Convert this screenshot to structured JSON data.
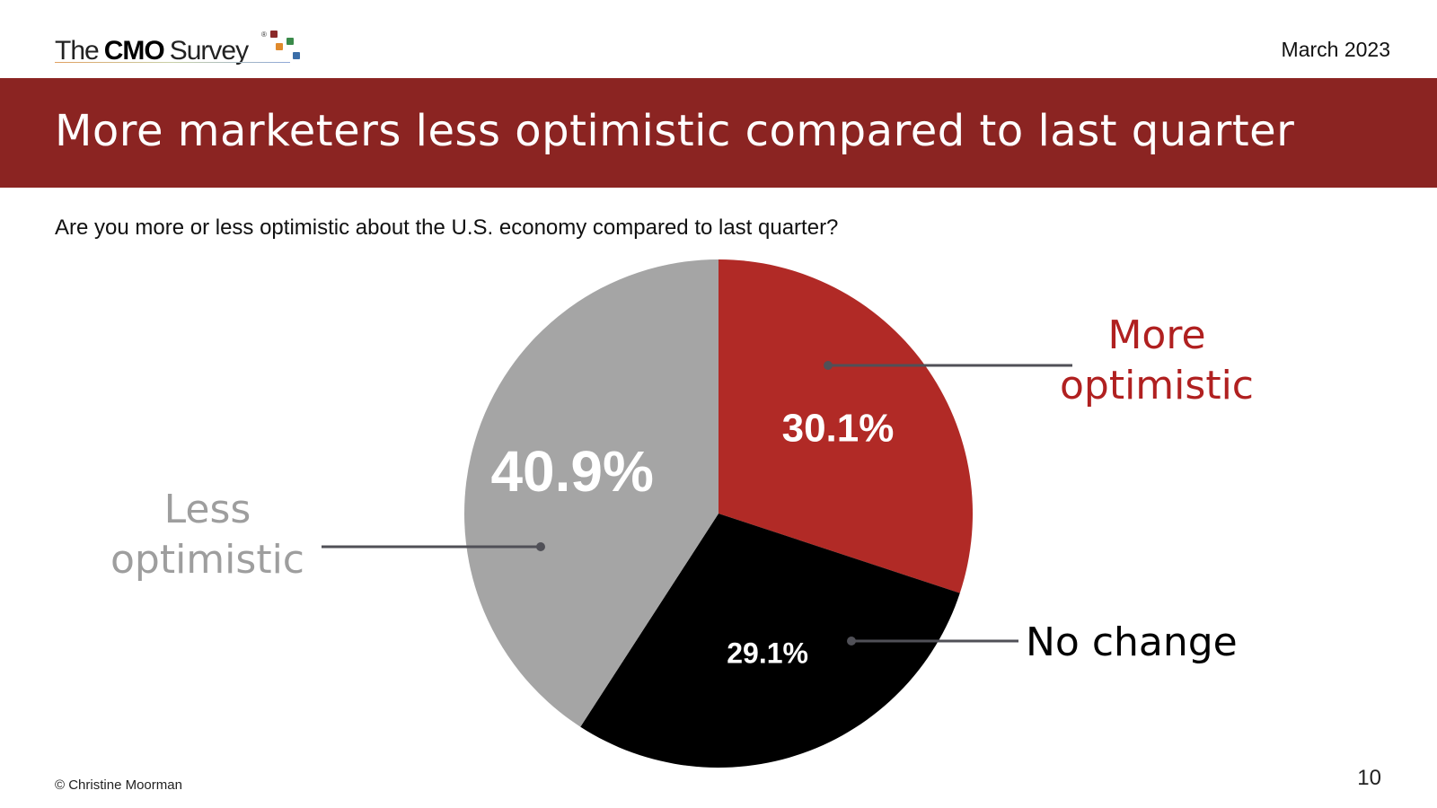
{
  "header": {
    "logo": {
      "the": "The",
      "cmo": "CMO",
      "survey": "Survey",
      "reg": "®"
    },
    "date": "March 2023"
  },
  "banner": {
    "title": "More marketers less optimistic compared to last quarter"
  },
  "question": "Are you more or less optimistic about the U.S. economy compared to last quarter?",
  "chart_data": {
    "type": "pie",
    "slices": [
      {
        "name": "More optimistic",
        "label_lines": [
          "More",
          "optimistic"
        ],
        "value": 30.1,
        "value_label": "30.1%",
        "color": "#b12a26",
        "label_color": "#b02020"
      },
      {
        "name": "No change",
        "label_lines": [
          "No change"
        ],
        "value": 29.1,
        "value_label": "29.1%",
        "color": "#000000",
        "label_color": "#000000"
      },
      {
        "name": "Less optimistic",
        "label_lines": [
          "Less",
          "optimistic"
        ],
        "value": 40.9,
        "value_label": "40.9%",
        "color": "#a5a5a5",
        "label_color": "#9e9e9e"
      }
    ],
    "start": "12 o'clock",
    "direction": "clockwise",
    "leader_line_color": "#505057"
  },
  "footer": {
    "copyright": "© Christine Moorman",
    "page_number": "10"
  }
}
